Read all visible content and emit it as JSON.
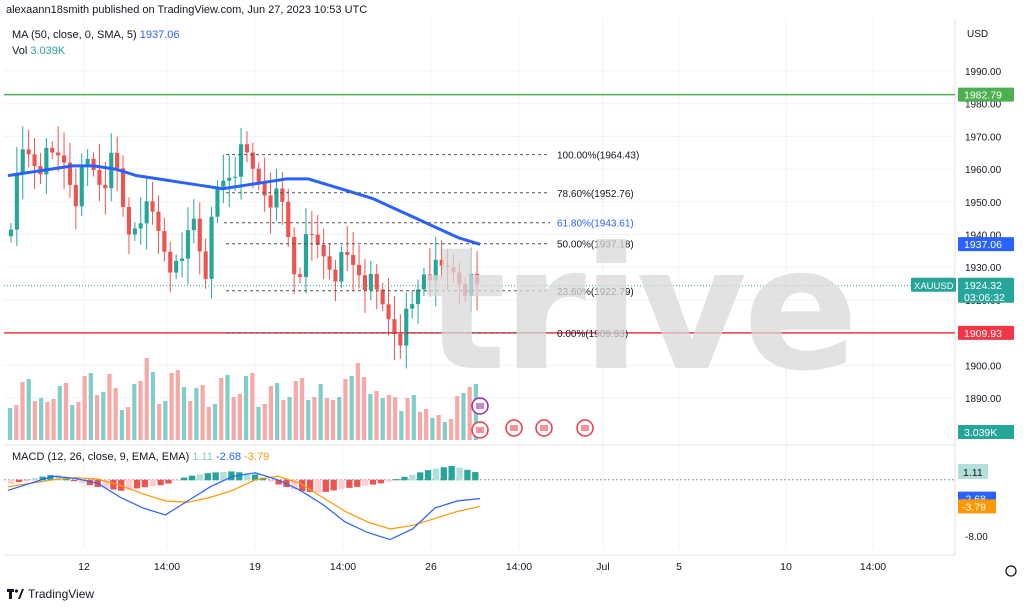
{
  "header": {
    "published": "alexaann18smith published on TradingView.com, Jun 27, 2023 10:53 UTC",
    "ma_label": "MA (50, close, 0, SMA, 5)",
    "ma_value": "1937.06",
    "vol_label": "Vol",
    "vol_value": "3.039K",
    "macd_label": "MACD (12, 26, close, 9, EMA, EMA)",
    "macd_v1": "1.11",
    "macd_v2": "-2.68",
    "macd_v3": "-3.79"
  },
  "watermark": "trive",
  "footer_logo": "TradingView",
  "colors": {
    "up": "#26a69a",
    "down": "#ef5350",
    "ma": "#2962ff",
    "resistance": "#4caf50",
    "support": "#f23645",
    "signal": "#ff9800",
    "macd": "#2962ff"
  },
  "chart_data": [
    {
      "type": "candlestick",
      "symbol": "XAUUSD",
      "currency": "USD",
      "price_label": "1924.32",
      "countdown": "03:06:32",
      "y_ticks": [
        "1990.00",
        "1980.00",
        "1970.00",
        "1960.00",
        "1950.00",
        "1940.00",
        "1930.00",
        "1920.00",
        "1910.00",
        "1900.00",
        "1890.00"
      ],
      "ylim": [
        1880.5,
        2000.5
      ],
      "x_ticks": [
        "12",
        "14:00",
        "19",
        "14:00",
        "26",
        "14:00",
        "Jul",
        "5",
        "10",
        "14:00"
      ],
      "horizontal_lines": [
        {
          "name": "resistance",
          "value": 1982.79,
          "label": "1982.79"
        },
        {
          "name": "support",
          "value": 1909.93,
          "label": "1909.93"
        }
      ],
      "fibonacci": [
        {
          "level": "100.00%",
          "value": 1964.43,
          "label": "100.00%(1964.43)"
        },
        {
          "level": "78.60%",
          "value": 1952.76,
          "label": "78.60%(1952.76)"
        },
        {
          "level": "61.80%",
          "value": 1943.61,
          "label": "61.80%(1943.61)"
        },
        {
          "level": "50.00%",
          "value": 1937.18,
          "label": "50.00%(1937.18)"
        },
        {
          "level": "23.60%",
          "value": 1922.79,
          "label": "23.60%(1922.79)"
        },
        {
          "level": "0.00%",
          "value": 1909.93,
          "label": "0.00%(1909.93)"
        }
      ],
      "ma_label": "1937.06",
      "close_anchors": [
        1946,
        1966,
        1962,
        1962,
        1964,
        1953,
        1962,
        1956,
        1962,
        1940,
        1948,
        1945,
        1935,
        1925,
        1948,
        1930,
        1954,
        1960,
        1964,
        1957,
        1953,
        1948,
        1927,
        1938,
        1935,
        1930,
        1932,
        1929,
        1922,
        1916,
        1910,
        1917,
        1931,
        1927,
        1930,
        1926,
        1923
      ],
      "ma_anchors": [
        1958,
        1959,
        1960,
        1961,
        1961,
        1960,
        1958,
        1957,
        1956,
        1955,
        1954,
        1955,
        1956,
        1957,
        1957,
        1955,
        1953,
        1951,
        1948,
        1945,
        1942,
        1939,
        1937
      ],
      "volume_label": "3.039K",
      "volume_anchors": [
        40,
        60,
        35,
        45,
        55,
        30,
        70,
        45,
        60,
        35,
        55,
        75,
        40,
        65,
        45,
        55,
        30,
        70,
        45,
        60,
        40,
        55,
        35,
        65,
        40,
        50,
        45,
        60,
        70,
        50,
        40,
        35,
        45,
        25,
        30,
        20
      ]
    },
    {
      "type": "macd",
      "y_ticks": [
        "1.11",
        "-8.00"
      ],
      "ylim": [
        -10,
        4
      ],
      "labels": [
        "1.11",
        "-2.68",
        "-3.79"
      ],
      "macd_anchors": [
        -1.5,
        -0.5,
        0.5,
        0.2,
        -0.5,
        -2.5,
        -4,
        -5,
        -3,
        -1,
        0.5,
        1,
        0,
        -1.5,
        -3.5,
        -6,
        -7.5,
        -8.5,
        -7,
        -4,
        -3,
        -2.68
      ],
      "signal_anchors": [
        -1,
        -0.5,
        0,
        0.3,
        0.1,
        -0.8,
        -2,
        -3,
        -3.2,
        -2.5,
        -1.5,
        0,
        0.5,
        -0.5,
        -2.5,
        -4.5,
        -6,
        -7,
        -6.5,
        -5.5,
        -4.5,
        -3.79
      ],
      "hist_anchors": [
        -0.5,
        0.2,
        0.8,
        -0.3,
        -1,
        -1.5,
        -1,
        -0.6,
        0.5,
        1,
        1.2,
        0.8,
        -0.5,
        -1.5,
        -1.8,
        -1.2,
        -0.8,
        -0.3,
        0.6,
        1.5,
        2,
        1.1
      ]
    }
  ]
}
